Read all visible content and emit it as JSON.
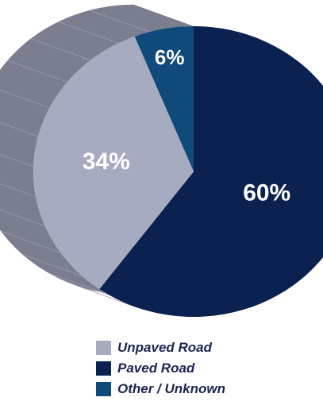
{
  "chart_data": {
    "type": "pie",
    "title": "",
    "slices": [
      {
        "name": "Paved Road",
        "value": 60,
        "label": "60%",
        "color": "#0b2150"
      },
      {
        "name": "Unpaved Road",
        "value": 34,
        "label": "34%",
        "color": "#a7abc0"
      },
      {
        "name": "Other / Unknown",
        "value": 6,
        "label": "6%",
        "color": "#0f4a7a"
      }
    ],
    "side_color": "#7b7e8f",
    "legend_position": "bottom"
  },
  "legend": {
    "items": [
      {
        "label": "Unpaved Road",
        "color": "#a7abc0"
      },
      {
        "label": "Paved Road",
        "color": "#0b2150"
      },
      {
        "label": "Other / Unknown",
        "color": "#0f4a7a"
      }
    ]
  }
}
